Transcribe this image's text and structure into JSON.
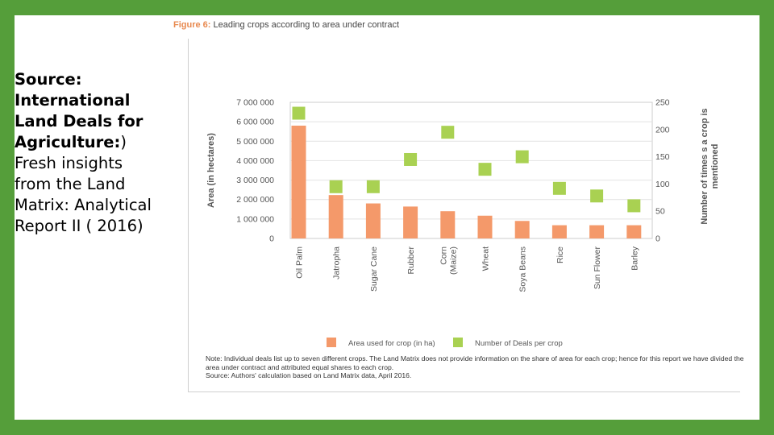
{
  "source_text": {
    "bold": "Source: International Land Deals for Agriculture:",
    "normal": ") Fresh insights from the Land Matrix: Analytical Report II ( 2016)"
  },
  "figure": {
    "number": "Figure 6:",
    "title": "Leading crops according to area under contract",
    "note": "Note: Individual deals list up to seven different crops. The Land Matrix does not provide information on the share of area for each crop; hence for this report we have divided the area under contract and attributed equal shares to each crop.",
    "source": "Source: Authors' calculation based on Land Matrix data, April 2016."
  },
  "colors": {
    "area": "#f4996a",
    "deals": "#a9d152",
    "border": "#559e3a"
  },
  "chart_data": {
    "type": "bar",
    "categories": [
      "Oil Palm",
      "Jatropha",
      "Sugar Cane",
      "Rubber",
      "Corn (Maize)",
      "Wheat",
      "Soya Beans",
      "Rice",
      "Sun Flower",
      "Barley"
    ],
    "series": [
      {
        "name": "Area used for crop (in ha)",
        "axis": "left",
        "mark": "bar",
        "values": [
          5800000,
          2230000,
          1800000,
          1640000,
          1400000,
          1170000,
          900000,
          680000,
          680000,
          680000
        ]
      },
      {
        "name": "Number of Deals per crop",
        "axis": "right",
        "mark": "square",
        "values": [
          230,
          95,
          95,
          145,
          195,
          127,
          150,
          92,
          78,
          60
        ]
      }
    ],
    "ylabel_left": "Area (in hectares)",
    "ylabel_right": "Number of times s a crop is mentioned",
    "ylim_left": [
      0,
      7000000
    ],
    "ylim_right": [
      0,
      250
    ],
    "yticks_left": [
      "0",
      "1 000 000",
      "2 000 000",
      "3 000 000",
      "4 000 000",
      "5 000 000",
      "6 000 000",
      "7 000 000"
    ],
    "yticks_right": [
      "0",
      "50",
      "100",
      "150",
      "200",
      "250"
    ],
    "grid": true,
    "legend_placement": "bottom"
  }
}
